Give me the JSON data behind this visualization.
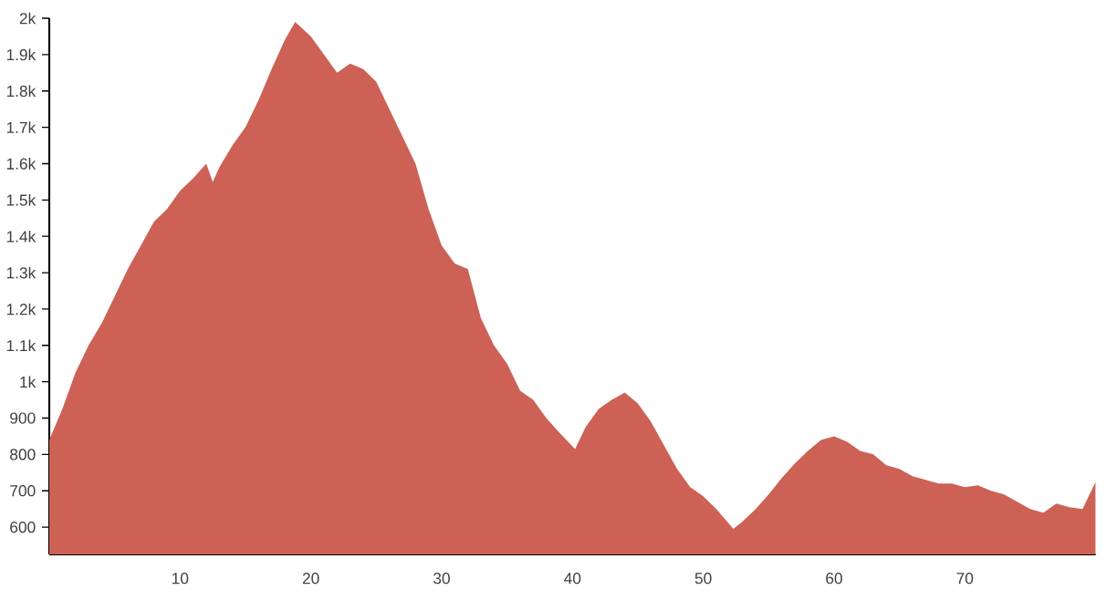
{
  "chart_data": {
    "type": "area",
    "color": "#cd6155",
    "xlim": [
      0,
      80
    ],
    "ylim": [
      525,
      2000
    ],
    "xticks": [
      10,
      20,
      30,
      40,
      50,
      60,
      70
    ],
    "yticks": [
      600,
      700,
      800,
      900,
      {
        "value": 1000,
        "label": "1k"
      },
      {
        "value": 1100,
        "label": "1.1k"
      },
      {
        "value": 1200,
        "label": "1.2k"
      },
      {
        "value": 1300,
        "label": "1.3k"
      },
      {
        "value": 1400,
        "label": "1.4k"
      },
      {
        "value": 1500,
        "label": "1.5k"
      },
      {
        "value": 1600,
        "label": "1.6k"
      },
      {
        "value": 1700,
        "label": "1.7k"
      },
      {
        "value": 1800,
        "label": "1.8k"
      },
      {
        "value": 1900,
        "label": "1.9k"
      },
      {
        "value": 2000,
        "label": "2k"
      }
    ],
    "x": [
      0,
      1,
      2,
      3,
      4,
      5,
      6,
      7,
      8,
      9,
      10,
      11,
      12,
      12.5,
      13,
      14,
      15,
      16,
      17,
      18,
      18.8,
      20,
      21,
      22,
      23,
      24,
      25,
      26,
      27,
      28,
      29,
      30,
      31,
      32,
      33,
      34,
      35,
      36,
      37,
      38,
      39,
      40.2,
      41,
      42,
      43,
      44,
      45,
      46,
      47,
      48,
      49,
      50,
      51,
      52.3,
      53,
      54,
      55,
      56,
      57,
      58,
      59,
      60,
      61,
      62,
      63,
      64,
      65,
      66,
      67,
      68,
      69,
      70,
      71,
      72,
      73,
      74,
      75,
      76,
      77,
      78,
      79,
      80
    ],
    "values": [
      840,
      925,
      1025,
      1100,
      1160,
      1235,
      1310,
      1375,
      1440,
      1475,
      1525,
      1560,
      1600,
      1550,
      1590,
      1650,
      1700,
      1775,
      1860,
      1940,
      1990,
      1950,
      1900,
      1850,
      1875,
      1860,
      1825,
      1750,
      1675,
      1600,
      1475,
      1375,
      1325,
      1310,
      1175,
      1100,
      1050,
      975,
      950,
      900,
      860,
      815,
      875,
      925,
      950,
      970,
      940,
      890,
      825,
      760,
      710,
      685,
      650,
      595,
      615,
      650,
      690,
      735,
      775,
      810,
      840,
      850,
      835,
      810,
      800,
      770,
      760,
      740,
      730,
      720,
      720,
      710,
      715,
      700,
      690,
      670,
      650,
      640,
      665,
      655,
      650,
      725
    ]
  }
}
